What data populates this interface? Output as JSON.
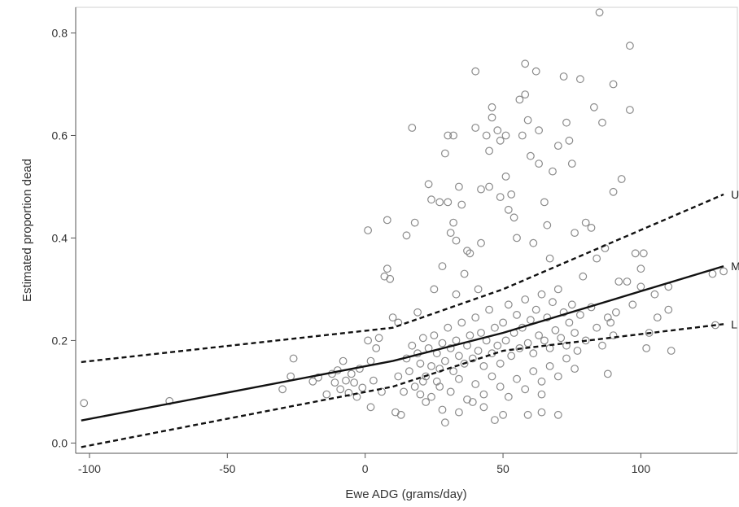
{
  "chart_data": {
    "type": "scatter",
    "xlabel": "Ewe ADG (grams/day)",
    "ylabel": "Estimated proportion dead",
    "xlim": [
      -105,
      135
    ],
    "ylim": [
      -0.02,
      0.85
    ],
    "xticks": [
      -100,
      -50,
      0,
      50,
      100
    ],
    "yticks": [
      0.0,
      0.2,
      0.4,
      0.6,
      0.8
    ],
    "xtick_labels": [
      "-100",
      "-50",
      "0",
      "50",
      "100"
    ],
    "ytick_labels": [
      "0.0",
      "0.2",
      "0.4",
      "0.6",
      "0.8"
    ],
    "grid": false,
    "lines": [
      {
        "label": "U",
        "style": "dashed",
        "points": [
          [
            -103,
            0.158
          ],
          [
            10,
            0.225
          ],
          [
            50,
            0.3
          ],
          [
            130,
            0.485
          ]
        ]
      },
      {
        "label": "M",
        "style": "solid",
        "points": [
          [
            -103,
            0.044
          ],
          [
            10,
            0.16
          ],
          [
            50,
            0.215
          ],
          [
            130,
            0.345
          ]
        ]
      },
      {
        "label": "L",
        "style": "dashed",
        "points": [
          [
            -103,
            -0.008
          ],
          [
            10,
            0.11
          ],
          [
            50,
            0.18
          ],
          [
            130,
            0.232
          ]
        ]
      }
    ],
    "series": [
      {
        "marker": "open-circle",
        "points": [
          [
            -102,
            0.078
          ],
          [
            -71,
            0.082
          ],
          [
            -30,
            0.105
          ],
          [
            -27,
            0.13
          ],
          [
            -26,
            0.165
          ],
          [
            -19,
            0.12
          ],
          [
            -17,
            0.128
          ],
          [
            -14,
            0.095
          ],
          [
            -12,
            0.135
          ],
          [
            -11,
            0.118
          ],
          [
            -10,
            0.142
          ],
          [
            -9,
            0.105
          ],
          [
            -8,
            0.16
          ],
          [
            -7,
            0.122
          ],
          [
            -6,
            0.098
          ],
          [
            -5,
            0.135
          ],
          [
            -4,
            0.118
          ],
          [
            -3,
            0.09
          ],
          [
            -2,
            0.145
          ],
          [
            -1,
            0.108
          ],
          [
            1,
            0.415
          ],
          [
            1,
            0.2
          ],
          [
            2,
            0.16
          ],
          [
            2,
            0.07
          ],
          [
            3,
            0.122
          ],
          [
            4,
            0.185
          ],
          [
            5,
            0.205
          ],
          [
            6,
            0.1
          ],
          [
            7,
            0.325
          ],
          [
            8,
            0.435
          ],
          [
            8,
            0.34
          ],
          [
            9,
            0.32
          ],
          [
            10,
            0.245
          ],
          [
            11,
            0.06
          ],
          [
            12,
            0.235
          ],
          [
            13,
            0.055
          ],
          [
            15,
            0.405
          ],
          [
            17,
            0.615
          ],
          [
            18,
            0.43
          ],
          [
            19,
            0.255
          ],
          [
            20,
            0.095
          ],
          [
            22,
            0.08
          ],
          [
            23,
            0.505
          ],
          [
            24,
            0.475
          ],
          [
            25,
            0.3
          ],
          [
            26,
            0.12
          ],
          [
            27,
            0.47
          ],
          [
            28,
            0.065
          ],
          [
            28,
            0.345
          ],
          [
            29,
            0.04
          ],
          [
            29,
            0.565
          ],
          [
            30,
            0.6
          ],
          [
            30,
            0.47
          ],
          [
            31,
            0.41
          ],
          [
            32,
            0.6
          ],
          [
            32,
            0.43
          ],
          [
            33,
            0.395
          ],
          [
            33,
            0.29
          ],
          [
            34,
            0.5
          ],
          [
            34,
            0.06
          ],
          [
            35,
            0.465
          ],
          [
            36,
            0.33
          ],
          [
            37,
            0.375
          ],
          [
            38,
            0.37
          ],
          [
            39,
            0.08
          ],
          [
            40,
            0.725
          ],
          [
            40,
            0.615
          ],
          [
            41,
            0.3
          ],
          [
            42,
            0.495
          ],
          [
            42,
            0.39
          ],
          [
            43,
            0.07
          ],
          [
            44,
            0.6
          ],
          [
            45,
            0.57
          ],
          [
            45,
            0.5
          ],
          [
            46,
            0.655
          ],
          [
            46,
            0.635
          ],
          [
            47,
            0.045
          ],
          [
            48,
            0.61
          ],
          [
            49,
            0.59
          ],
          [
            49,
            0.48
          ],
          [
            50,
            0.055
          ],
          [
            51,
            0.6
          ],
          [
            51,
            0.52
          ],
          [
            52,
            0.455
          ],
          [
            53,
            0.485
          ],
          [
            54,
            0.44
          ],
          [
            55,
            0.4
          ],
          [
            56,
            0.67
          ],
          [
            57,
            0.6
          ],
          [
            58,
            0.74
          ],
          [
            58,
            0.68
          ],
          [
            59,
            0.63
          ],
          [
            59,
            0.055
          ],
          [
            60,
            0.56
          ],
          [
            61,
            0.39
          ],
          [
            62,
            0.725
          ],
          [
            63,
            0.61
          ],
          [
            63,
            0.545
          ],
          [
            64,
            0.06
          ],
          [
            64,
            0.095
          ],
          [
            65,
            0.47
          ],
          [
            66,
            0.425
          ],
          [
            67,
            0.36
          ],
          [
            68,
            0.53
          ],
          [
            70,
            0.58
          ],
          [
            70,
            0.055
          ],
          [
            72,
            0.715
          ],
          [
            73,
            0.625
          ],
          [
            74,
            0.59
          ],
          [
            75,
            0.545
          ],
          [
            76,
            0.41
          ],
          [
            78,
            0.71
          ],
          [
            79,
            0.325
          ],
          [
            80,
            0.43
          ],
          [
            82,
            0.42
          ],
          [
            83,
            0.655
          ],
          [
            84,
            0.36
          ],
          [
            85,
            0.84
          ],
          [
            86,
            0.625
          ],
          [
            87,
            0.38
          ],
          [
            88,
            0.135
          ],
          [
            89,
            0.235
          ],
          [
            90,
            0.7
          ],
          [
            90,
            0.49
          ],
          [
            91,
            0.255
          ],
          [
            92,
            0.315
          ],
          [
            93,
            0.515
          ],
          [
            95,
            0.315
          ],
          [
            96,
            0.65
          ],
          [
            96,
            0.775
          ],
          [
            97,
            0.27
          ],
          [
            98,
            0.37
          ],
          [
            100,
            0.34
          ],
          [
            100,
            0.305
          ],
          [
            101,
            0.37
          ],
          [
            102,
            0.185
          ],
          [
            103,
            0.215
          ],
          [
            105,
            0.29
          ],
          [
            106,
            0.245
          ],
          [
            110,
            0.305
          ],
          [
            110,
            0.26
          ],
          [
            111,
            0.18
          ],
          [
            126,
            0.33
          ],
          [
            127,
            0.23
          ],
          [
            130,
            0.335
          ],
          [
            15,
            0.165
          ],
          [
            16,
            0.14
          ],
          [
            17,
            0.19
          ],
          [
            18,
            0.11
          ],
          [
            19,
            0.175
          ],
          [
            20,
            0.155
          ],
          [
            21,
            0.205
          ],
          [
            22,
            0.13
          ],
          [
            23,
            0.185
          ],
          [
            24,
            0.15
          ],
          [
            25,
            0.21
          ],
          [
            26,
            0.175
          ],
          [
            27,
            0.145
          ],
          [
            28,
            0.195
          ],
          [
            29,
            0.16
          ],
          [
            30,
            0.225
          ],
          [
            31,
            0.185
          ],
          [
            32,
            0.14
          ],
          [
            33,
            0.2
          ],
          [
            34,
            0.17
          ],
          [
            35,
            0.235
          ],
          [
            36,
            0.155
          ],
          [
            37,
            0.19
          ],
          [
            38,
            0.21
          ],
          [
            39,
            0.165
          ],
          [
            40,
            0.245
          ],
          [
            41,
            0.18
          ],
          [
            42,
            0.215
          ],
          [
            43,
            0.15
          ],
          [
            44,
            0.2
          ],
          [
            45,
            0.26
          ],
          [
            46,
            0.175
          ],
          [
            47,
            0.225
          ],
          [
            48,
            0.19
          ],
          [
            49,
            0.155
          ],
          [
            50,
            0.235
          ],
          [
            51,
            0.2
          ],
          [
            52,
            0.27
          ],
          [
            53,
            0.17
          ],
          [
            54,
            0.215
          ],
          [
            55,
            0.25
          ],
          [
            56,
            0.185
          ],
          [
            57,
            0.225
          ],
          [
            58,
            0.28
          ],
          [
            59,
            0.195
          ],
          [
            60,
            0.24
          ],
          [
            61,
            0.175
          ],
          [
            62,
            0.26
          ],
          [
            63,
            0.21
          ],
          [
            64,
            0.29
          ],
          [
            65,
            0.2
          ],
          [
            66,
            0.245
          ],
          [
            67,
            0.185
          ],
          [
            68,
            0.275
          ],
          [
            69,
            0.22
          ],
          [
            70,
            0.3
          ],
          [
            71,
            0.205
          ],
          [
            72,
            0.255
          ],
          [
            73,
            0.19
          ],
          [
            74,
            0.235
          ],
          [
            75,
            0.27
          ],
          [
            76,
            0.215
          ],
          [
            77,
            0.18
          ],
          [
            78,
            0.25
          ],
          [
            80,
            0.2
          ],
          [
            82,
            0.265
          ],
          [
            84,
            0.225
          ],
          [
            86,
            0.19
          ],
          [
            88,
            0.245
          ],
          [
            90,
            0.21
          ],
          [
            12,
            0.13
          ],
          [
            14,
            0.1
          ],
          [
            21,
            0.12
          ],
          [
            24,
            0.09
          ],
          [
            27,
            0.11
          ],
          [
            31,
            0.1
          ],
          [
            34,
            0.125
          ],
          [
            37,
            0.085
          ],
          [
            40,
            0.115
          ],
          [
            43,
            0.095
          ],
          [
            46,
            0.13
          ],
          [
            49,
            0.11
          ],
          [
            52,
            0.09
          ],
          [
            55,
            0.125
          ],
          [
            58,
            0.105
          ],
          [
            61,
            0.14
          ],
          [
            64,
            0.12
          ],
          [
            67,
            0.15
          ],
          [
            70,
            0.13
          ],
          [
            73,
            0.165
          ],
          [
            76,
            0.145
          ]
        ]
      }
    ]
  }
}
